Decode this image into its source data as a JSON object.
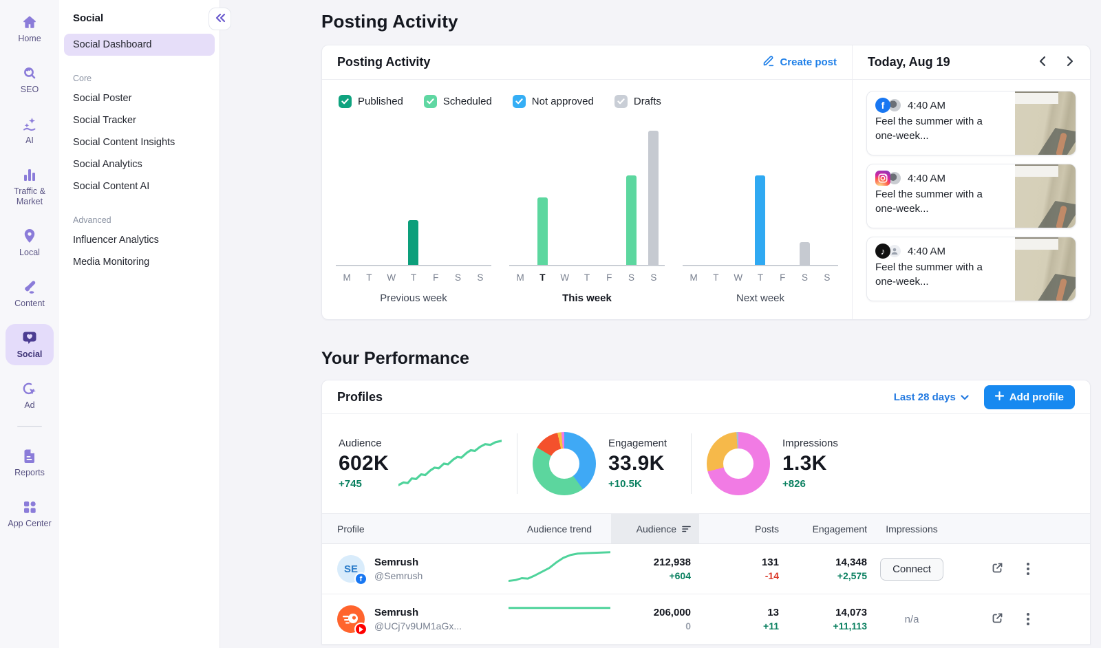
{
  "sidebar_rail": {
    "items": [
      {
        "label": "Home",
        "icon": "home-icon",
        "active": false
      },
      {
        "label": "SEO",
        "icon": "seo-icon",
        "active": false
      },
      {
        "label": "AI",
        "icon": "ai-icon",
        "active": false
      },
      {
        "label": "Traffic & Market",
        "icon": "traffic-market-icon",
        "active": false
      },
      {
        "label": "Local",
        "icon": "local-icon",
        "active": false
      },
      {
        "label": "Content",
        "icon": "content-icon",
        "active": false
      },
      {
        "label": "Social",
        "icon": "social-icon",
        "active": true
      },
      {
        "label": "Ad",
        "icon": "ad-icon",
        "active": false
      },
      {
        "label": "Reports",
        "icon": "reports-icon",
        "active": false
      },
      {
        "label": "App Center",
        "icon": "app-center-icon",
        "active": false
      }
    ]
  },
  "sidebar_menu": {
    "title": "Social",
    "collapse_icon": "chevron-double-left",
    "active_item": "Social Dashboard",
    "sections": [
      {
        "label": "Core",
        "items": [
          "Social Poster",
          "Social Tracker",
          "Social Content Insights",
          "Social Analytics",
          "Social Content AI"
        ]
      },
      {
        "label": "Advanced",
        "items": [
          "Influencer Analytics",
          "Media Monitoring"
        ]
      }
    ]
  },
  "page": {
    "title": "Posting Activity"
  },
  "posting_card": {
    "title": "Posting Activity",
    "create_post_label": "Create post",
    "create_post_icon": "pencil-icon",
    "filters": [
      {
        "label": "Published",
        "color": "#0FA37F",
        "checked": true
      },
      {
        "label": "Scheduled",
        "color": "#5FD7A2",
        "checked": true
      },
      {
        "label": "Not approved",
        "color": "#35AEF5",
        "checked": true
      },
      {
        "label": "Drafts",
        "color": "#C9CED6",
        "checked": true
      }
    ],
    "today": {
      "title": "Today, Aug 19",
      "prev_icon": "chevron-left-icon",
      "next_icon": "chevron-right-icon",
      "posts": [
        {
          "network": "Facebook",
          "time": "4:40 AM",
          "text": "Feel the summer with a one-week..."
        },
        {
          "network": "Instagram",
          "time": "4:40 AM",
          "text": "Feel the summer with a one-week..."
        },
        {
          "network": "TikTok",
          "time": "4:40 AM",
          "text": "Feel the summer with a one-week..."
        }
      ]
    }
  },
  "performance": {
    "section_title": "Your Performance",
    "profiles": {
      "title": "Profiles",
      "range_label": "Last 28 days",
      "add_profile_label": "Add profile",
      "stats": [
        {
          "label": "Audience",
          "value": "602K",
          "delta": "+745"
        },
        {
          "label": "Engagement",
          "value": "33.9K",
          "delta": "+10.5K"
        },
        {
          "label": "Impressions",
          "value": "1.3K",
          "delta": "+826"
        }
      ],
      "table": {
        "columns": [
          "Profile",
          "Audience trend",
          "Audience",
          "Posts",
          "Engagement",
          "Impressions"
        ],
        "sorted_column": "Audience",
        "rows": [
          {
            "name": "Semrush",
            "handle": "@Semrush",
            "network": "Facebook",
            "avatar_text": "SE",
            "audience": "212,938",
            "audience_delta": "+604",
            "posts": "131",
            "posts_delta": "-14",
            "engagement": "14,348",
            "engagement_delta": "+2,575",
            "impressions_action": "Connect"
          },
          {
            "name": "Semrush",
            "handle": "@UCj7v9UM1aGx...",
            "network": "YouTube",
            "audience": "206,000",
            "audience_delta": "0",
            "posts": "13",
            "posts_delta": "+11",
            "engagement": "14,073",
            "engagement_delta": "+11,113",
            "impressions_value": "n/a"
          }
        ]
      }
    }
  },
  "chart_data": [
    {
      "type": "bar",
      "title": "Posting Activity by week",
      "max_count": 6,
      "status_colors": {
        "published": "#0C9F7B",
        "scheduled": "#5CD79F",
        "not_approved": "#2FA9F2",
        "drafts": "#C6CAD1"
      },
      "weeks": [
        {
          "label": "Previous week",
          "emphasis": false,
          "days": [
            "M",
            "T",
            "W",
            "T",
            "F",
            "S",
            "S"
          ],
          "bold_day": null,
          "bars": [
            {
              "day": 3,
              "count": 2,
              "status": "published"
            }
          ]
        },
        {
          "label": "This week",
          "emphasis": true,
          "days": [
            "M",
            "T",
            "W",
            "T",
            "F",
            "S",
            "S"
          ],
          "bold_day": 1,
          "bars": [
            {
              "day": 1,
              "count": 3,
              "status": "scheduled"
            },
            {
              "day": 5,
              "count": 4,
              "status": "scheduled"
            },
            {
              "day": 6,
              "count": 6,
              "status": "drafts"
            }
          ]
        },
        {
          "label": "Next week",
          "emphasis": false,
          "days": [
            "M",
            "T",
            "W",
            "T",
            "F",
            "S",
            "S"
          ],
          "bold_day": null,
          "bars": [
            {
              "day": 3,
              "count": 4,
              "status": "not_approved"
            },
            {
              "day": 5,
              "count": 1,
              "status": "drafts"
            }
          ]
        }
      ]
    },
    {
      "type": "pie",
      "title": "Engagement by network",
      "segments": [
        {
          "color": "#3FA9F5",
          "pct": 40
        },
        {
          "color": "#5CD69E",
          "pct": 43.5
        },
        {
          "color": "#F4512C",
          "pct": 13
        },
        {
          "color": "#F6C244",
          "pct": 2
        },
        {
          "color": "#F17BE4",
          "pct": 1.5
        }
      ]
    },
    {
      "type": "pie",
      "title": "Impressions by network",
      "segments": [
        {
          "color": "#F17BE4",
          "pct": 71
        },
        {
          "color": "#F6B94A",
          "pct": 28
        },
        {
          "color": "#A9BBD0",
          "pct": 1
        }
      ]
    },
    {
      "type": "line",
      "title": "Audience trend (602K)",
      "color": "#4FD39B",
      "points": [
        [
          0,
          36
        ],
        [
          5,
          34
        ],
        [
          9,
          34.5
        ],
        [
          13,
          31
        ],
        [
          17,
          31.5
        ],
        [
          22,
          28
        ],
        [
          26,
          28.5
        ],
        [
          31,
          25
        ],
        [
          35,
          23
        ],
        [
          39,
          23.5
        ],
        [
          44,
          20
        ],
        [
          48,
          20.5
        ],
        [
          53,
          17
        ],
        [
          57,
          15
        ],
        [
          61,
          15.5
        ],
        [
          66,
          12
        ],
        [
          70,
          10
        ],
        [
          74,
          10.5
        ],
        [
          79,
          7.5
        ],
        [
          84,
          5.5
        ],
        [
          89,
          6
        ],
        [
          94,
          4
        ],
        [
          100,
          3
        ]
      ]
    },
    {
      "type": "line",
      "title": "Semrush Facebook audience trend",
      "color": "#4FD39B",
      "points": [
        [
          0,
          33
        ],
        [
          7,
          32
        ],
        [
          13,
          30
        ],
        [
          19,
          30.5
        ],
        [
          26,
          27
        ],
        [
          33,
          23
        ],
        [
          40,
          19
        ],
        [
          47,
          13
        ],
        [
          54,
          8
        ],
        [
          61,
          5
        ],
        [
          68,
          3.5
        ],
        [
          78,
          3
        ],
        [
          100,
          2
        ]
      ]
    },
    {
      "type": "line",
      "title": "Semrush YouTube audience trend",
      "color": "#4FD39B",
      "points": [
        [
          0,
          8
        ],
        [
          100,
          8
        ]
      ]
    }
  ]
}
